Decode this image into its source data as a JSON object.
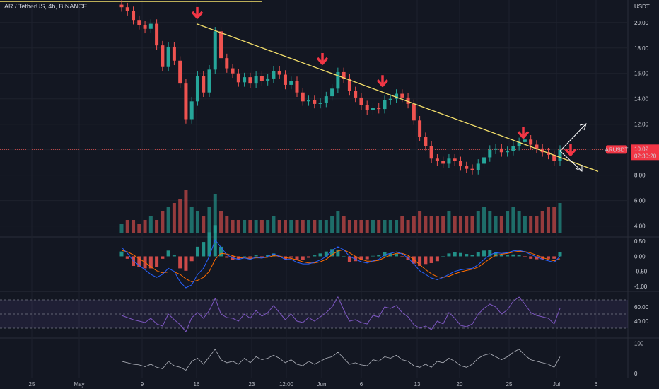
{
  "header": {
    "symbol_line": "AR / TetherUS, 4h, BINANCE"
  },
  "colors": {
    "background": "#131722",
    "grid": "#1e222d",
    "up": "#26a69a",
    "down": "#ef5350",
    "trendline": "#f5e06a",
    "arrow": "#f23645",
    "macd_line": "#2962ff",
    "signal_line": "#ff6d00",
    "rsi": "#7e57c2",
    "price_tag": "#f23645"
  },
  "chart_data": [
    {
      "type": "candlestick",
      "symbol": "AR / TetherUS",
      "interval": "4h",
      "exchange": "BINANCE",
      "y_unit": "USDT",
      "yticks": [
        20.0,
        18.0,
        16.0,
        14.0,
        12.0,
        10.0,
        8.0,
        6.0,
        4.0
      ],
      "ylim": [
        3.2,
        21.6
      ],
      "x_ticks": [
        "25",
        "May",
        "9",
        "16",
        "23",
        "12:00",
        "Jun",
        "6",
        "13",
        "20",
        "25",
        "Jul",
        "6"
      ],
      "last_price": {
        "label": "ARUSDT",
        "value": "10.02",
        "countdown": "02:30:20"
      },
      "closes": [
        21.2,
        20.9,
        20.2,
        19.8,
        19.5,
        19.9,
        18.2,
        16.5,
        18.1,
        17.0,
        15.2,
        12.4,
        13.8,
        15.8,
        14.5,
        16.3,
        19.3,
        17.2,
        16.4,
        16.0,
        15.3,
        15.7,
        15.2,
        15.8,
        15.4,
        15.6,
        16.2,
        15.9,
        15.1,
        15.4,
        14.5,
        13.8,
        13.9,
        13.6,
        13.7,
        14.2,
        14.8,
        16.1,
        15.6,
        14.6,
        14.1,
        13.5,
        13.1,
        13.3,
        13.2,
        13.9,
        14.0,
        14.4,
        14.1,
        13.6,
        12.3,
        11.0,
        10.3,
        9.3,
        9.1,
        8.9,
        9.3,
        9.1,
        8.7,
        8.5,
        8.4,
        8.9,
        9.4,
        10.0,
        10.1,
        9.8,
        9.9,
        10.3,
        10.6,
        10.8,
        10.4,
        10.1,
        9.8,
        9.6,
        9.1,
        10.0
      ],
      "annotations": {
        "trendline": {
          "from": {
            "x_label": "16",
            "price": 19.9
          },
          "to": {
            "x_label": "Jul",
            "price": 9.5
          }
        },
        "resistance_arrows": 5,
        "projection_arrows": [
          "up",
          "down"
        ],
        "horizontal_price_line": 10.02
      }
    },
    {
      "type": "bar",
      "name": "volume",
      "values": [
        2,
        3,
        3,
        2,
        3,
        4,
        3,
        5,
        6,
        7,
        8,
        10,
        6,
        5,
        4,
        6,
        9,
        5,
        4,
        3,
        3,
        3,
        3,
        3,
        3,
        3,
        4,
        3,
        3,
        3,
        3,
        3,
        3,
        3,
        3,
        3,
        4,
        5,
        4,
        3,
        3,
        3,
        3,
        3,
        3,
        3,
        3,
        3,
        4,
        3,
        4,
        5,
        4,
        4,
        4,
        4,
        5,
        4,
        4,
        4,
        4,
        5,
        6,
        5,
        4,
        4,
        5,
        6,
        5,
        4,
        4,
        4,
        5,
        6,
        6,
        7
      ]
    },
    {
      "type": "line",
      "name": "MACD",
      "yticks": [
        0.5,
        0.0,
        -0.5,
        -1.0
      ],
      "ylim": [
        -1.05,
        0.6
      ],
      "macd": [
        0.3,
        0.1,
        -0.15,
        -0.3,
        -0.45,
        -0.6,
        -0.7,
        -0.6,
        -0.4,
        -0.5,
        -0.85,
        -1.05,
        -0.95,
        -0.6,
        -0.4,
        0.0,
        0.55,
        0.3,
        0.05,
        -0.05,
        -0.1,
        -0.05,
        -0.1,
        -0.03,
        -0.06,
        0.0,
        0.08,
        0.0,
        -0.1,
        -0.1,
        -0.2,
        -0.25,
        -0.25,
        -0.2,
        -0.12,
        0.0,
        0.2,
        0.32,
        0.22,
        0.0,
        -0.1,
        -0.18,
        -0.22,
        -0.15,
        -0.1,
        0.05,
        0.1,
        0.15,
        0.08,
        -0.05,
        -0.25,
        -0.48,
        -0.6,
        -0.72,
        -0.78,
        -0.7,
        -0.6,
        -0.5,
        -0.45,
        -0.42,
        -0.4,
        -0.28,
        -0.1,
        0.05,
        0.12,
        0.1,
        0.12,
        0.18,
        0.2,
        0.15,
        0.06,
        -0.02,
        -0.1,
        -0.15,
        -0.2,
        0.0
      ],
      "signal": [
        0.2,
        0.15,
        0.05,
        -0.08,
        -0.2,
        -0.35,
        -0.48,
        -0.55,
        -0.52,
        -0.52,
        -0.6,
        -0.75,
        -0.85,
        -0.8,
        -0.7,
        -0.5,
        -0.1,
        0.1,
        0.08,
        0.02,
        -0.04,
        -0.05,
        -0.07,
        -0.05,
        -0.05,
        -0.03,
        0.02,
        0.01,
        -0.04,
        -0.07,
        -0.12,
        -0.18,
        -0.22,
        -0.22,
        -0.18,
        -0.1,
        0.05,
        0.18,
        0.22,
        0.12,
        0.0,
        -0.1,
        -0.16,
        -0.16,
        -0.13,
        -0.04,
        0.04,
        0.1,
        0.1,
        0.03,
        -0.1,
        -0.28,
        -0.44,
        -0.58,
        -0.68,
        -0.7,
        -0.66,
        -0.58,
        -0.52,
        -0.47,
        -0.43,
        -0.36,
        -0.22,
        -0.08,
        0.03,
        0.07,
        0.1,
        0.14,
        0.17,
        0.16,
        0.11,
        0.04,
        -0.04,
        -0.1,
        -0.15,
        -0.08
      ]
    },
    {
      "type": "line",
      "name": "RSI",
      "yticks": [
        60.0,
        40.0
      ],
      "ylim": [
        20,
        80
      ],
      "band": [
        30,
        70
      ],
      "values": [
        48,
        45,
        42,
        40,
        38,
        44,
        36,
        33,
        50,
        42,
        35,
        25,
        45,
        52,
        44,
        55,
        72,
        50,
        45,
        44,
        40,
        50,
        44,
        55,
        47,
        52,
        62,
        52,
        42,
        50,
        40,
        38,
        45,
        40,
        46,
        52,
        60,
        74,
        56,
        40,
        42,
        38,
        36,
        48,
        46,
        60,
        58,
        62,
        52,
        46,
        35,
        30,
        33,
        28,
        40,
        36,
        52,
        44,
        34,
        32,
        36,
        50,
        58,
        64,
        60,
        50,
        56,
        68,
        74,
        64,
        52,
        48,
        46,
        44,
        36,
        58
      ]
    },
    {
      "type": "line",
      "name": "oscillator",
      "yticks": [
        100,
        0
      ],
      "ylim": [
        -10,
        110
      ],
      "values": [
        40,
        35,
        30,
        28,
        22,
        30,
        20,
        15,
        40,
        25,
        20,
        10,
        40,
        50,
        30,
        55,
        80,
        45,
        35,
        40,
        30,
        50,
        35,
        55,
        45,
        50,
        60,
        50,
        35,
        45,
        30,
        25,
        40,
        30,
        40,
        50,
        55,
        70,
        50,
        30,
        35,
        28,
        25,
        45,
        40,
        55,
        50,
        60,
        45,
        40,
        25,
        20,
        30,
        20,
        40,
        35,
        50,
        40,
        25,
        20,
        30,
        50,
        60,
        65,
        55,
        45,
        55,
        70,
        80,
        60,
        45,
        40,
        35,
        30,
        20,
        55
      ]
    }
  ]
}
